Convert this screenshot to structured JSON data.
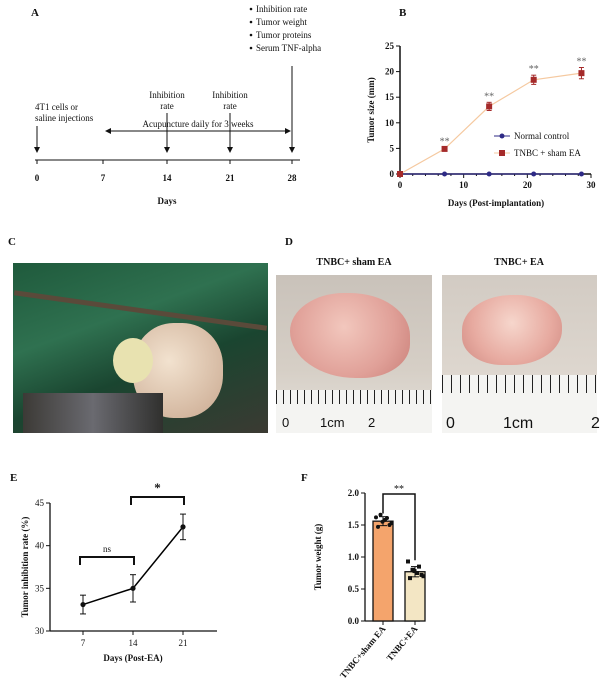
{
  "panels": {
    "A": {
      "label": "A",
      "start_text": [
        "4T1  cells  or",
        "saline injections"
      ],
      "inhibition_label": [
        "Inhibition",
        "rate"
      ],
      "final_measures": [
        "Inhibition rate",
        "Tumor weight",
        "Tumor proteins",
        "Serum TNF-alpha"
      ],
      "acupuncture_text": "Acupuncture daily for 3 weeks",
      "ticks": [
        "0",
        "7",
        "14",
        "21",
        "28"
      ],
      "xlabel": "Days"
    },
    "B": {
      "label": "B"
    },
    "C": {
      "label": "C"
    },
    "D": {
      "label": "D",
      "titles": [
        "TNBC+ sham EA",
        "TNBC+ EA"
      ],
      "ruler_labels_left": [
        "0",
        "1cm",
        "2"
      ],
      "ruler_labels_right": [
        "0",
        "1cm",
        "2"
      ]
    },
    "E": {
      "label": "E"
    },
    "F": {
      "label": "F"
    }
  },
  "chart_data": [
    {
      "panel": "B",
      "type": "line",
      "xlabel": "Days (Post-implantation)",
      "ylabel": "Tumor size (mm)",
      "xlim": [
        0,
        30
      ],
      "ylim": [
        0,
        25
      ],
      "xticks": [
        "0",
        "10",
        "20",
        "30"
      ],
      "yticks": [
        "0",
        "5",
        "10",
        "15",
        "20",
        "25"
      ],
      "legend_position": "right",
      "series": [
        {
          "name": "Normal control",
          "color": "#2e2a86",
          "marker": "circle",
          "x": [
            0,
            7,
            14,
            21,
            28.5
          ],
          "y": [
            0,
            0,
            0,
            0,
            0
          ],
          "err": [
            0,
            0,
            0,
            0,
            0
          ]
        },
        {
          "name": "TNBC + sham EA",
          "color": "#a52a2a",
          "line_color": "#f5c9a0",
          "marker": "square",
          "x": [
            0,
            7,
            14,
            21,
            28.5
          ],
          "y": [
            0,
            4.9,
            13.2,
            18.4,
            19.7
          ],
          "err": [
            0,
            0.3,
            0.8,
            0.9,
            1.1
          ],
          "annotations": [
            "",
            "**",
            "**",
            "**",
            "**"
          ]
        }
      ]
    },
    {
      "panel": "E",
      "type": "line",
      "xlabel": "Days (Post-EA)",
      "ylabel": "Tumor inhibition rate (%)",
      "ylim": [
        30,
        45
      ],
      "xticks": [
        "7",
        "14",
        "21"
      ],
      "yticks": [
        "30",
        "35",
        "40",
        "45"
      ],
      "series": [
        {
          "x": [
            7,
            14,
            21
          ],
          "y": [
            33.1,
            35.0,
            42.2
          ],
          "err": [
            1.1,
            1.6,
            1.5
          ],
          "color": "#000000"
        }
      ],
      "comparisons": [
        {
          "from": "7",
          "to": "14",
          "label": "ns"
        },
        {
          "from": "14",
          "to": "21",
          "label": "*"
        }
      ]
    },
    {
      "panel": "F",
      "type": "bar",
      "ylabel": "Tumor weight (g)",
      "ylim": [
        0,
        2.0
      ],
      "yticks": [
        "0.0",
        "0.5",
        "1.0",
        "1.5",
        "2.0"
      ],
      "categories": [
        "TNBC+sham EA",
        "TNBC+EA"
      ],
      "values": [
        1.56,
        0.77
      ],
      "err": [
        0.07,
        0.08
      ],
      "colors": [
        "#f4a46c",
        "#f3e6c4"
      ],
      "points": [
        [
          1.62,
          1.66,
          1.58,
          1.5,
          1.47,
          1.55,
          1.61,
          1.53
        ],
        [
          0.93,
          0.8,
          0.75,
          0.72,
          0.67,
          0.78,
          0.85,
          0.7
        ]
      ],
      "comparisons": [
        {
          "from": "TNBC+sham EA",
          "to": "TNBC+EA",
          "label": "**"
        }
      ]
    }
  ]
}
